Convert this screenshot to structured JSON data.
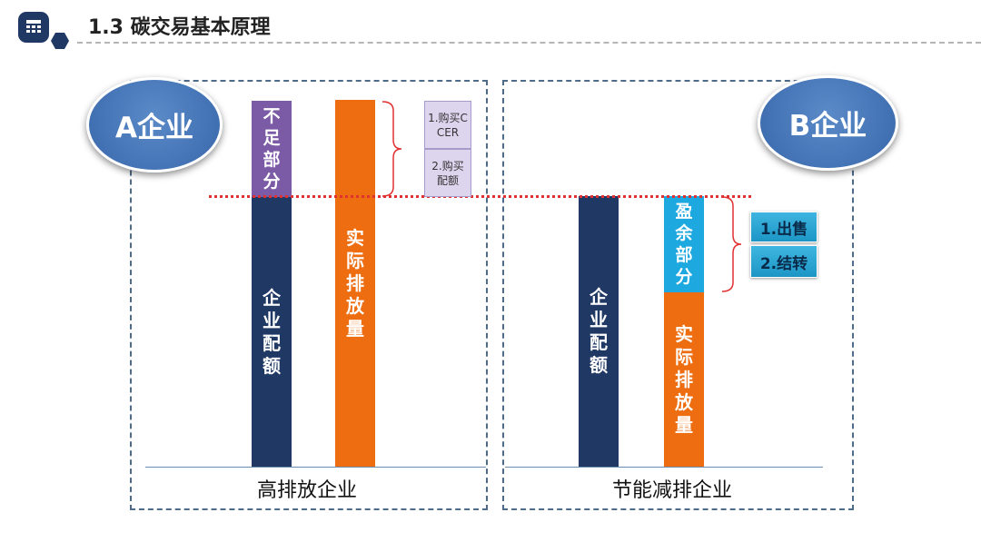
{
  "header": {
    "title": "1.3 碳交易基本原理",
    "icon": "table-icon",
    "icon_color": "#1f3864"
  },
  "company_a": {
    "badge": "A企业",
    "shortfall": "不足部分",
    "allowance": "企业配额",
    "actual": "实际排放量",
    "option1": "1.购买CCER",
    "option2": "2.购买配额",
    "caption": "高排放企业"
  },
  "company_b": {
    "badge": "B企业",
    "allowance": "企业配额",
    "surplus": "盈余部分",
    "actual": "实际排放量",
    "option1": "1.出售",
    "option2": "2.结转",
    "caption": "节能减排企业"
  },
  "colors": {
    "navy": "#1f3864",
    "orange": "#ed6d10",
    "purple": "#7b5aa6",
    "cyan": "#1ea8e0",
    "red_dotted": "#e03030",
    "circle_blue": "#4272b4"
  }
}
